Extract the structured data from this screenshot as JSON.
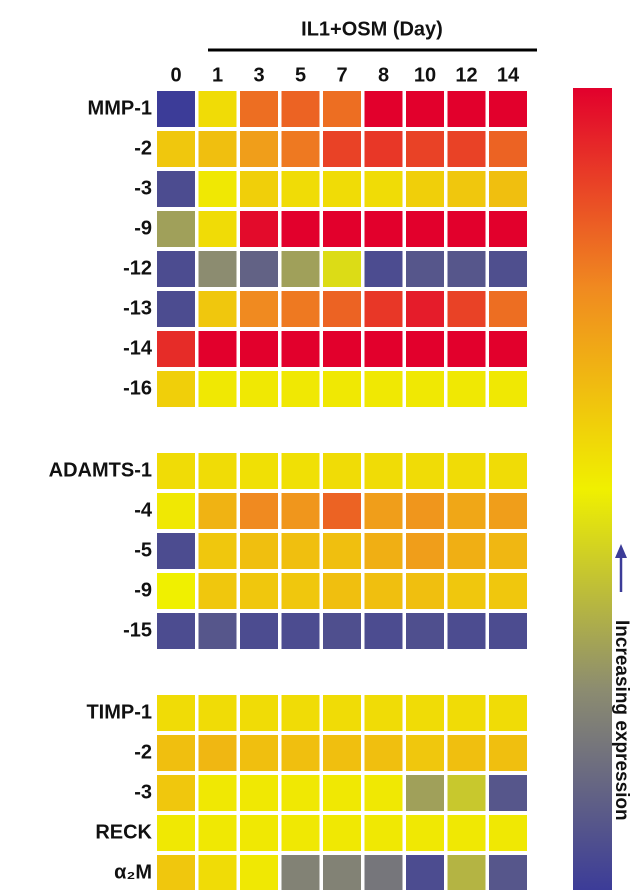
{
  "chart_data": {
    "type": "heatmap",
    "title": "IL1+OSM (Day)",
    "columns": [
      "0",
      "1",
      "3",
      "5",
      "7",
      "8",
      "10",
      "12",
      "14"
    ],
    "zlim": [
      0,
      1
    ],
    "colormap": [
      "#3c3c98",
      "#8c8c70",
      "#f0f000",
      "#f08a20",
      "#e2002c"
    ],
    "colorbar_label": "Increasing expression",
    "groups": [
      {
        "rows": [
          {
            "label": "MMP-1",
            "values": [
              0.0,
              0.55,
              0.8,
              0.82,
              0.8,
              1,
              1,
              1,
              1
            ]
          },
          {
            "label": "-2",
            "values": [
              0.6,
              0.62,
              0.7,
              0.78,
              0.88,
              0.9,
              0.88,
              0.88,
              0.82
            ]
          },
          {
            "label": "-3",
            "values": [
              0.05,
              0.52,
              0.58,
              0.55,
              0.55,
              0.55,
              0.58,
              0.6,
              0.62
            ]
          },
          {
            "label": "-9",
            "values": [
              0.3,
              0.55,
              0.98,
              1,
              1,
              1,
              1,
              1,
              1
            ]
          },
          {
            "label": "-12",
            "values": [
              0.05,
              0.25,
              0.12,
              0.3,
              0.45,
              0.05,
              0.08,
              0.08,
              0.06
            ]
          },
          {
            "label": "-13",
            "values": [
              0.05,
              0.6,
              0.75,
              0.78,
              0.82,
              0.9,
              0.95,
              0.88,
              0.8
            ]
          },
          {
            "label": "-14",
            "values": [
              0.92,
              1,
              1,
              1,
              1,
              1,
              1,
              1,
              1
            ]
          },
          {
            "label": "-16",
            "values": [
              0.58,
              0.52,
              0.52,
              0.52,
              0.52,
              0.52,
              0.52,
              0.52,
              0.52
            ]
          }
        ]
      },
      {
        "rows": [
          {
            "label": "ADAMTS-1",
            "values": [
              0.55,
              0.55,
              0.54,
              0.54,
              0.55,
              0.55,
              0.55,
              0.55,
              0.55
            ]
          },
          {
            "label": "-4",
            "values": [
              0.52,
              0.65,
              0.75,
              0.72,
              0.82,
              0.7,
              0.72,
              0.68,
              0.7
            ]
          },
          {
            "label": "-5",
            "values": [
              0.05,
              0.6,
              0.62,
              0.62,
              0.62,
              0.66,
              0.7,
              0.66,
              0.64
            ]
          },
          {
            "label": "-9",
            "values": [
              0.5,
              0.6,
              0.6,
              0.6,
              0.62,
              0.62,
              0.62,
              0.6,
              0.6
            ]
          },
          {
            "label": "-15",
            "values": [
              0.05,
              0.08,
              0.05,
              0.05,
              0.06,
              0.05,
              0.06,
              0.05,
              0.05
            ]
          }
        ]
      },
      {
        "rows": [
          {
            "label": "TIMP-1",
            "values": [
              0.55,
              0.55,
              0.55,
              0.55,
              0.55,
              0.55,
              0.55,
              0.55,
              0.55
            ]
          },
          {
            "label": "-2",
            "values": [
              0.62,
              0.64,
              0.62,
              0.62,
              0.62,
              0.62,
              0.6,
              0.62,
              0.62
            ]
          },
          {
            "label": "-3",
            "values": [
              0.6,
              0.52,
              0.52,
              0.52,
              0.52,
              0.52,
              0.3,
              0.4,
              0.08
            ]
          },
          {
            "label": "RECK",
            "values": [
              0.52,
              0.52,
              0.52,
              0.52,
              0.52,
              0.52,
              0.52,
              0.52,
              0.52
            ]
          },
          {
            "label": "α₂M",
            "values": [
              0.6,
              0.55,
              0.52,
              0.22,
              0.22,
              0.18,
              0.05,
              0.35,
              0.08
            ]
          }
        ]
      }
    ]
  }
}
